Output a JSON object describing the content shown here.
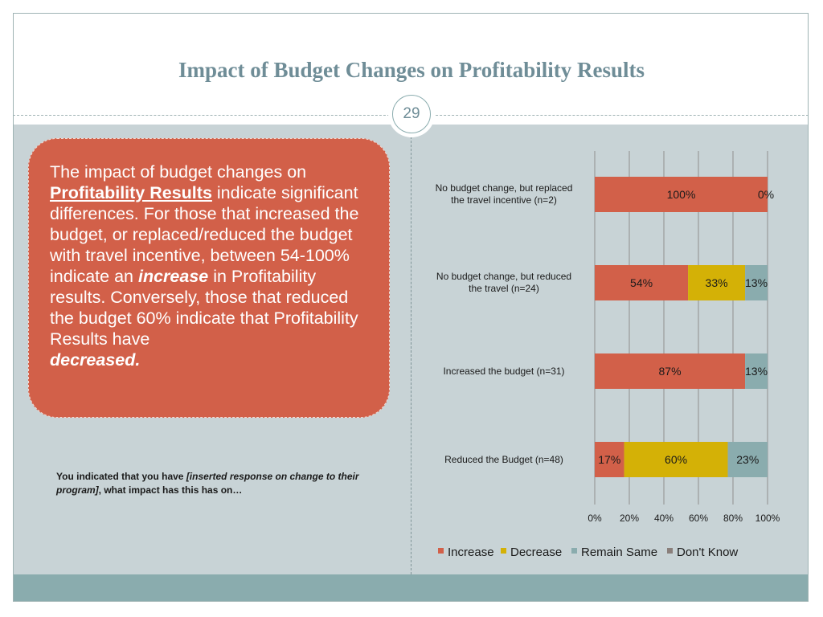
{
  "slide": {
    "title": "Impact of Budget Changes on Profitability Results",
    "page_number": "29"
  },
  "callout": {
    "part1": "The impact of budget changes on ",
    "emph1": "Profitability Results",
    "part2": " indicate significant differences.  For those that increased the budget, or replaced/reduced the budget with travel incentive, between 54-100% indicate an ",
    "emph2": "increase",
    "part3": " in Profitability results.  Conversely, those that reduced the budget 60% indicate that Profitability Results have ",
    "emph3": "decreased."
  },
  "note": {
    "part1": "You indicated that you have ",
    "italic": "[inserted response  on change to their program]",
    "part2": ", what impact has this has on…"
  },
  "chart_data": {
    "type": "bar",
    "orientation": "horizontal",
    "stacked": true,
    "categories": [
      "No budget change, but replaced the travel incentive (n=2)",
      "No budget change, but reduced the travel (n=24)",
      "Increased the budget (n=31)",
      "Reduced the Budget (n=48)"
    ],
    "series": [
      {
        "name": "Increase",
        "color": "#d26049",
        "values": [
          100,
          54,
          87,
          17
        ],
        "labels": [
          "100%",
          "54%",
          "87%",
          "17%"
        ]
      },
      {
        "name": "Decrease",
        "color": "#d4b106",
        "values": [
          0,
          33,
          0,
          60
        ],
        "labels": [
          "0%",
          "33%",
          "",
          "60%"
        ]
      },
      {
        "name": "Remain Same",
        "color": "#8aacae",
        "values": [
          0,
          13,
          13,
          23
        ],
        "labels": [
          "",
          "13%",
          "13%",
          "23%"
        ]
      },
      {
        "name": "Don't Know",
        "color": "#8a7f7b",
        "values": [
          0,
          0,
          0,
          0
        ],
        "labels": [
          "",
          "",
          "",
          ""
        ]
      }
    ],
    "x_ticks": [
      "0%",
      "20%",
      "40%",
      "60%",
      "80%",
      "100%"
    ],
    "xlim": [
      0,
      100
    ],
    "grid": true,
    "legend": "bottom"
  }
}
